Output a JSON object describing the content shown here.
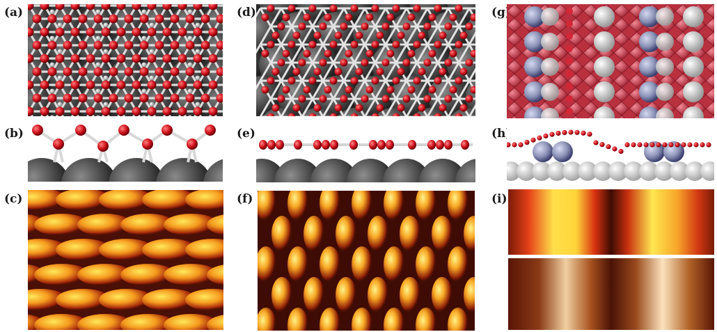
{
  "figure": {
    "panel_labels": {
      "a": "(a)",
      "b": "(b)",
      "c": "(c)",
      "d": "(d)",
      "e": "(e)",
      "f": "(f)",
      "g": "(g)",
      "h": "(h)",
      "i": "(i)"
    },
    "colors": {
      "oxygen": "#d0121c",
      "substrate_dark": "#3b3b3b",
      "substrate_light": "#e6e6e6",
      "adsorbate_blue": "#8c92b6",
      "stm_dark": "#3a0a04",
      "stm_bright": "#ffe85a",
      "background": "#ffffff"
    }
  }
}
